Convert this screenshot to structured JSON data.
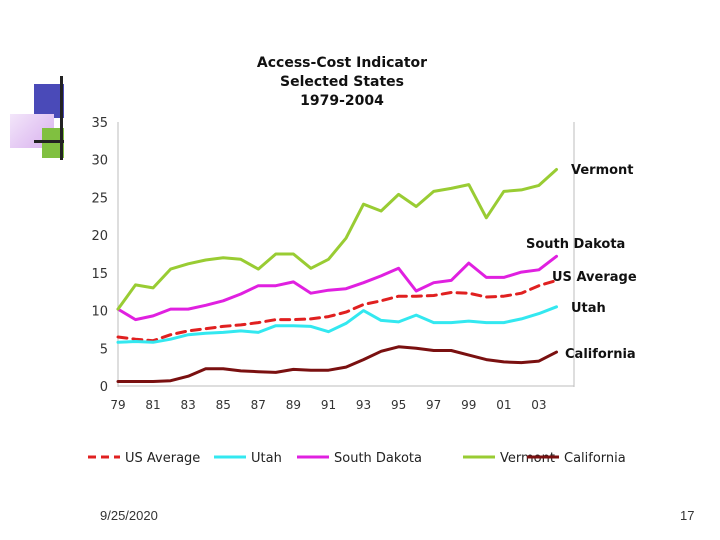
{
  "slide": {
    "date": "9/25/2020",
    "page_number": "17"
  },
  "chart_data": {
    "type": "line",
    "title": "Access-Cost Indicator",
    "subtitle_lines": [
      "Selected States",
      "1979-2004"
    ],
    "xlabel": "",
    "ylabel": "",
    "ylim": [
      0,
      35
    ],
    "yticks": [
      "0",
      "5",
      "10",
      "15",
      "20",
      "25",
      "30",
      "35"
    ],
    "xticks": [
      "79",
      "81",
      "83",
      "85",
      "87",
      "89",
      "91",
      "93",
      "95",
      "97",
      "99",
      "01",
      "03"
    ],
    "x": [
      1979,
      1980,
      1981,
      1982,
      1983,
      1984,
      1985,
      1986,
      1987,
      1988,
      1989,
      1990,
      1991,
      1992,
      1993,
      1994,
      1995,
      1996,
      1997,
      1998,
      1999,
      2000,
      2001,
      2002,
      2003,
      2004
    ],
    "legend_position": "bottom",
    "series": [
      {
        "name": "US Average",
        "label": "US Average",
        "color": "#e02020",
        "dash": true,
        "values": [
          6.5,
          6.2,
          6.0,
          6.8,
          7.3,
          7.6,
          7.9,
          8.1,
          8.4,
          8.8,
          8.8,
          8.9,
          9.2,
          9.8,
          10.8,
          11.3,
          11.9,
          11.9,
          12.0,
          12.4,
          12.3,
          11.8,
          11.9,
          12.3,
          13.3,
          14.0
        ]
      },
      {
        "name": "Utah",
        "label": "Utah",
        "color": "#33e8f0",
        "dash": false,
        "values": [
          5.8,
          5.9,
          5.8,
          6.2,
          6.8,
          7.0,
          7.1,
          7.3,
          7.1,
          8.0,
          8.0,
          7.9,
          7.2,
          8.3,
          10.0,
          8.7,
          8.5,
          9.4,
          8.4,
          8.4,
          8.6,
          8.4,
          8.4,
          8.9,
          9.6,
          10.5
        ]
      },
      {
        "name": "South Dakota",
        "label": "South Dakota",
        "color": "#e020e0",
        "dash": false,
        "values": [
          10.2,
          8.8,
          9.3,
          10.2,
          10.2,
          10.7,
          11.3,
          12.2,
          13.3,
          13.3,
          13.8,
          12.3,
          12.7,
          12.9,
          13.7,
          14.6,
          15.6,
          12.6,
          13.7,
          14.0,
          16.3,
          14.4,
          14.4,
          15.1,
          15.4,
          17.2
        ]
      },
      {
        "name": "Vermont",
        "label": "Vermont",
        "color": "#99cc33",
        "dash": false,
        "values": [
          10.2,
          13.4,
          13.0,
          15.5,
          16.2,
          16.7,
          17.0,
          16.8,
          15.5,
          17.5,
          17.5,
          15.6,
          16.8,
          19.6,
          24.1,
          23.2,
          25.4,
          23.8,
          25.8,
          26.2,
          26.7,
          22.3,
          25.8,
          26.0,
          26.6,
          28.7
        ]
      },
      {
        "name": "California",
        "label": "California",
        "color": "#7a1010",
        "dash": false,
        "values": [
          0.6,
          0.6,
          0.6,
          0.7,
          1.3,
          2.3,
          2.3,
          2.0,
          1.9,
          1.8,
          2.2,
          2.1,
          2.1,
          2.5,
          3.5,
          4.6,
          5.2,
          5.0,
          4.7,
          4.7,
          4.1,
          3.5,
          3.2,
          3.1,
          3.3,
          4.5
        ]
      }
    ]
  }
}
